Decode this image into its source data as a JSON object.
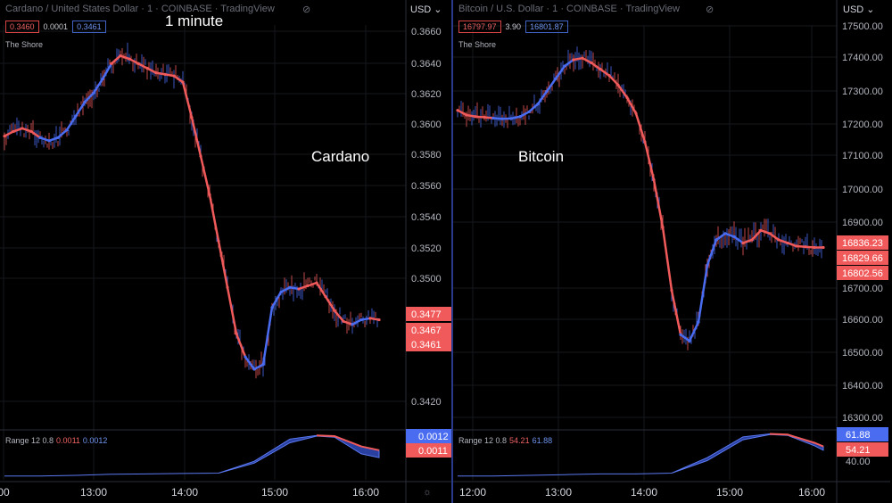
{
  "annotation_top": "1 minute",
  "colors": {
    "bg": "#000000",
    "red": "#f05a5a",
    "blue": "#4a6cf0",
    "axis": "#6a6d78",
    "text": "#b2b5be",
    "divider": "#2a3a8a"
  },
  "panels": [
    {
      "id": "cardano",
      "header": "Cardano / United States Dollar · 1 · COINBASE · TradingView",
      "values": {
        "red": "0.3460",
        "diff": "0.0001",
        "blue": "0.3461"
      },
      "indicator_name": "The Shore",
      "big_label": "Cardano",
      "currency": "USD",
      "y_ticks": [
        "0.3660",
        "0.3640",
        "0.3620",
        "0.3600",
        "0.3580",
        "0.3560",
        "0.3540",
        "0.3520",
        "0.3500",
        "0.3420"
      ],
      "price_badges": [
        {
          "text": "0.3477",
          "color": "red"
        },
        {
          "text": "0.3467",
          "color": "red"
        },
        {
          "text": "0.3461",
          "color": "red"
        }
      ],
      "sub_label": {
        "name": "Range 12 0.8",
        "red": "0.0011",
        "blue": "0.0012"
      },
      "sub_badges": [
        {
          "text": "0.0012",
          "color": "blue"
        },
        {
          "text": "0.0011",
          "color": "red"
        }
      ],
      "x_ticks": [
        "00",
        "13:00",
        "14:00",
        "15:00",
        "16:00"
      ],
      "chart_data": {
        "type": "line",
        "title": "",
        "ylim": [
          0.341,
          0.367
        ],
        "series": [
          {
            "name": "",
            "color": "blue",
            "x": [
              0,
              10,
              20,
              30,
              40,
              50,
              60,
              70,
              80,
              90,
              100,
              110,
              120,
              130,
              140,
              150,
              160,
              170,
              180,
              190,
              200,
              210,
              220,
              230,
              240,
              250,
              260,
              270,
              280,
              290,
              300,
              310,
              320,
              330,
              340,
              350,
              360,
              370,
              380,
              390,
              400,
              410,
              420
            ],
            "values": [
              0.3598,
              0.3601,
              0.3603,
              0.3601,
              0.3597,
              0.3595,
              0.3597,
              0.3602,
              0.3611,
              0.362,
              0.3626,
              0.3635,
              0.3645,
              0.365,
              0.3648,
              0.3645,
              0.3642,
              0.3639,
              0.3638,
              0.3637,
              0.3633,
              0.361,
              0.3585,
              0.356,
              0.353,
              0.35,
              0.347,
              0.3455,
              0.3447,
              0.345,
              0.3487,
              0.3497,
              0.35,
              0.3499,
              0.3501,
              0.3503,
              0.3494,
              0.3485,
              0.3478,
              0.3476,
              0.3479,
              0.348,
              0.3479
            ]
          }
        ],
        "shore_colors": [
          "red",
          "red",
          "red",
          "red",
          "blue",
          "blue",
          "blue",
          "blue",
          "blue",
          "blue",
          "blue",
          "blue",
          "red",
          "red",
          "red",
          "red",
          "red",
          "red",
          "red",
          "red",
          "red",
          "red",
          "red",
          "red",
          "red",
          "red",
          "red",
          "blue",
          "blue",
          "blue",
          "blue",
          "blue",
          "blue",
          "red",
          "red",
          "red",
          "red",
          "red",
          "red",
          "blue",
          "blue",
          "red",
          "red"
        ]
      },
      "sub_chart": {
        "name": "Range 12 0.8",
        "ylim": [
          0,
          0.0013
        ],
        "x": [
          0,
          40,
          80,
          120,
          160,
          200,
          240,
          280,
          320,
          350,
          370,
          400,
          420
        ],
        "upper": [
          0.0001,
          0.0001,
          0.00012,
          0.00015,
          0.00016,
          0.00017,
          0.00018,
          0.0005,
          0.0011,
          0.0012,
          0.00118,
          0.0009,
          0.0008
        ],
        "lower": [
          0.0001,
          0.0001,
          0.00012,
          0.00015,
          0.00016,
          0.00017,
          0.00018,
          0.00045,
          0.001,
          0.00118,
          0.00115,
          0.0007,
          0.0006
        ]
      }
    },
    {
      "id": "bitcoin",
      "header": "Bitcoin / U.S. Dollar · 1 · COINBASE · TradingView",
      "values": {
        "red": "16797.97",
        "diff": "3.90",
        "blue": "16801.87"
      },
      "indicator_name": "The Shore",
      "big_label": "Bitcoin",
      "currency": "USD",
      "y_ticks": [
        "17500.00",
        "17400.00",
        "17300.00",
        "17200.00",
        "17100.00",
        "17000.00",
        "16900.00",
        "16700.00",
        "16600.00",
        "16500.00",
        "16400.00",
        "16300.00"
      ],
      "price_badges": [
        {
          "text": "16836.23",
          "color": "red"
        },
        {
          "text": "16829.66",
          "color": "red"
        },
        {
          "text": "16802.56",
          "color": "red"
        }
      ],
      "sub_label": {
        "name": "Range 12 0.8",
        "red": "54.21",
        "blue": "61.88"
      },
      "sub_badges": [
        {
          "text": "61.88",
          "color": "blue"
        },
        {
          "text": "54.21",
          "color": "red"
        }
      ],
      "x_ticks": [
        "12:00",
        "13:00",
        "14:00",
        "15:00",
        "16:00"
      ],
      "chart_data": {
        "type": "line",
        "title": "",
        "ylim": [
          16270,
          17540
        ],
        "series": [
          {
            "name": "",
            "color": "blue",
            "x": [
              0,
              10,
              20,
              30,
              40,
              50,
              60,
              70,
              80,
              90,
              100,
              110,
              120,
              130,
              140,
              150,
              160,
              170,
              180,
              190,
              200,
              210,
              220,
              230,
              240,
              250,
              260,
              270,
              280,
              290,
              300,
              310,
              320,
              330,
              340,
              350,
              360,
              370,
              380,
              390,
              400,
              410
            ],
            "values": [
              17270,
              17255,
              17250,
              17248,
              17245,
              17243,
              17244,
              17250,
              17265,
              17290,
              17330,
              17370,
              17410,
              17430,
              17435,
              17420,
              17400,
              17380,
              17350,
              17310,
              17260,
              17170,
              17050,
              16900,
              16700,
              16560,
              16540,
              16600,
              16780,
              16860,
              16880,
              16870,
              16850,
              16860,
              16890,
              16880,
              16860,
              16850,
              16840,
              16838,
              16836,
              16836
            ]
          }
        ],
        "shore_colors": [
          "red",
          "red",
          "red",
          "red",
          "blue",
          "blue",
          "blue",
          "blue",
          "blue",
          "blue",
          "blue",
          "blue",
          "blue",
          "red",
          "red",
          "red",
          "red",
          "red",
          "red",
          "red",
          "red",
          "red",
          "red",
          "red",
          "red",
          "blue",
          "blue",
          "blue",
          "blue",
          "blue",
          "blue",
          "blue",
          "red",
          "red",
          "red",
          "red",
          "red",
          "red",
          "red",
          "red",
          "red",
          "red"
        ]
      },
      "sub_chart": {
        "name": "Range 12 0.8",
        "ylim": [
          0,
          65
        ],
        "x": [
          0,
          40,
          80,
          120,
          160,
          200,
          240,
          280,
          320,
          350,
          370,
          400,
          410
        ],
        "upper": [
          5,
          5,
          6,
          7,
          8,
          8,
          9,
          30,
          58,
          62,
          61,
          50,
          45
        ],
        "lower": [
          5,
          5,
          6,
          7,
          8,
          8,
          9,
          26,
          54,
          61,
          60,
          46,
          40
        ]
      }
    }
  ]
}
